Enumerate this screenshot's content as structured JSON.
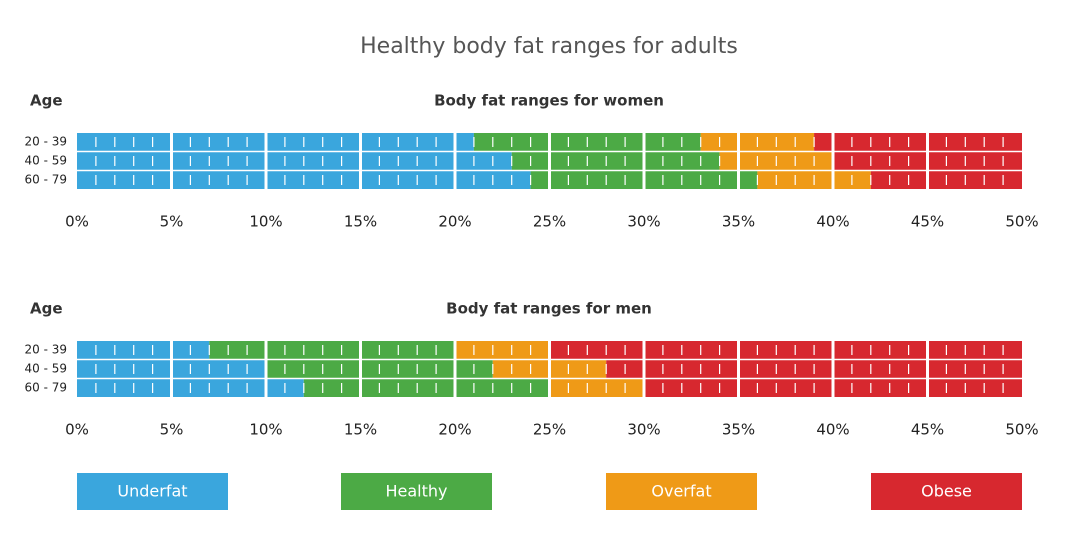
{
  "title": "Healthy body fat ranges for adults",
  "chart_data": [
    {
      "type": "bar",
      "horizontal": true,
      "stacked": true,
      "title": "Body fat ranges for women",
      "y_label": "Age",
      "categories": [
        "20 - 39",
        "40 - 59",
        "60 - 79"
      ],
      "series": [
        {
          "name": "Underfat",
          "color": "#3aa6dd",
          "values": [
            21,
            23,
            24
          ]
        },
        {
          "name": "Healthy",
          "color": "#4caa45",
          "values": [
            12,
            11,
            12
          ]
        },
        {
          "name": "Overfat",
          "color": "#ef9a17",
          "values": [
            6,
            6,
            6
          ]
        },
        {
          "name": "Obese",
          "color": "#d7282f",
          "values": [
            11,
            10,
            8
          ]
        }
      ],
      "xlim": [
        0,
        50
      ],
      "xticks": [
        {
          "value": 0,
          "label": "0%"
        },
        {
          "value": 5,
          "label": "5%"
        },
        {
          "value": 10,
          "label": "10%"
        },
        {
          "value": 15,
          "label": "15%"
        },
        {
          "value": 20,
          "label": "20%"
        },
        {
          "value": 25,
          "label": "25%"
        },
        {
          "value": 30,
          "label": "30%"
        },
        {
          "value": 35,
          "label": "35%"
        },
        {
          "value": 40,
          "label": "40%"
        },
        {
          "value": 45,
          "label": "45%"
        },
        {
          "value": 50,
          "label": "50%"
        }
      ]
    },
    {
      "type": "bar",
      "horizontal": true,
      "stacked": true,
      "title": "Body fat ranges for men",
      "y_label": "Age",
      "categories": [
        "20 - 39",
        "40 - 59",
        "60 - 79"
      ],
      "series": [
        {
          "values": [
            7,
            10,
            12
          ]
        },
        {
          "values": [
            13,
            12,
            13
          ]
        },
        {
          "values": [
            5,
            6,
            5
          ]
        },
        {
          "values": [
            25,
            22,
            20
          ]
        }
      ],
      "xlim": [
        0,
        50
      ],
      "xticks": [
        {
          "value": 0,
          "label": "0%"
        },
        {
          "value": 5,
          "label": "5%"
        },
        {
          "value": 10,
          "label": "10%"
        },
        {
          "value": 15,
          "label": "15%"
        },
        {
          "value": 20,
          "label": "20%"
        },
        {
          "value": 25,
          "label": "25%"
        },
        {
          "value": 30,
          "label": "30%"
        },
        {
          "value": 35,
          "label": "35%"
        },
        {
          "value": 40,
          "label": "40%"
        },
        {
          "value": 45,
          "label": "45%"
        },
        {
          "value": 50,
          "label": "50%"
        }
      ]
    }
  ]
}
